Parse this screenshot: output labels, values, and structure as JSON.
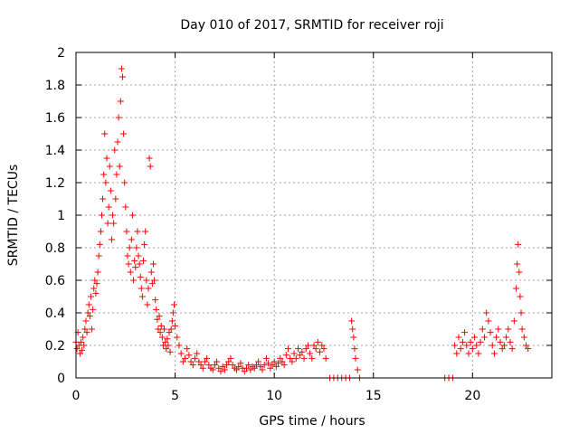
{
  "chart_data": {
    "type": "scatter",
    "title": "Day 010 of 2017, SRMTID for receiver roji",
    "xlabel": "GPS time / hours",
    "ylabel": "SRMTID / TECUs",
    "xlim": [
      0,
      24
    ],
    "ylim": [
      0,
      2
    ],
    "xticks": [
      0,
      5,
      10,
      15,
      20
    ],
    "yticks": [
      0,
      0.2,
      0.4,
      0.6,
      0.8,
      1,
      1.2,
      1.4,
      1.6,
      1.8,
      2
    ],
    "ytick_labels": [
      "0",
      "0.2",
      "0.4",
      "0.6",
      "0.8",
      "1",
      "1.2",
      "1.4",
      "1.6",
      "1.8",
      "2"
    ],
    "grid": true,
    "marker": "+",
    "color": "#ff0000",
    "series": [
      {
        "name": "SRMTID",
        "points": [
          [
            0.0,
            0.22
          ],
          [
            0.05,
            0.18
          ],
          [
            0.1,
            0.28
          ],
          [
            0.15,
            0.2
          ],
          [
            0.2,
            0.15
          ],
          [
            0.25,
            0.22
          ],
          [
            0.3,
            0.17
          ],
          [
            0.35,
            0.25
          ],
          [
            0.4,
            0.2
          ],
          [
            0.45,
            0.3
          ],
          [
            0.5,
            0.35
          ],
          [
            0.55,
            0.28
          ],
          [
            0.6,
            0.4
          ],
          [
            0.65,
            0.45
          ],
          [
            0.7,
            0.38
          ],
          [
            0.75,
            0.5
          ],
          [
            0.8,
            0.3
          ],
          [
            0.85,
            0.42
          ],
          [
            0.9,
            0.55
          ],
          [
            0.95,
            0.6
          ],
          [
            1.0,
            0.52
          ],
          [
            1.05,
            0.58
          ],
          [
            1.1,
            0.65
          ],
          [
            1.15,
            0.75
          ],
          [
            1.2,
            0.82
          ],
          [
            1.25,
            0.9
          ],
          [
            1.3,
            1.0
          ],
          [
            1.35,
            1.1
          ],
          [
            1.4,
            1.25
          ],
          [
            1.45,
            1.5
          ],
          [
            1.5,
            1.2
          ],
          [
            1.55,
            1.35
          ],
          [
            1.6,
            0.95
          ],
          [
            1.65,
            1.05
          ],
          [
            1.7,
            1.3
          ],
          [
            1.75,
            1.15
          ],
          [
            1.8,
            0.85
          ],
          [
            1.85,
            1.0
          ],
          [
            1.9,
            0.95
          ],
          [
            1.95,
            1.4
          ],
          [
            2.0,
            1.1
          ],
          [
            2.05,
            1.25
          ],
          [
            2.1,
            1.45
          ],
          [
            2.15,
            1.6
          ],
          [
            2.2,
            1.3
          ],
          [
            2.25,
            1.7
          ],
          [
            2.3,
            1.9
          ],
          [
            2.35,
            1.85
          ],
          [
            2.4,
            1.5
          ],
          [
            2.45,
            1.2
          ],
          [
            2.5,
            1.05
          ],
          [
            2.55,
            0.9
          ],
          [
            2.6,
            0.75
          ],
          [
            2.65,
            0.7
          ],
          [
            2.7,
            0.8
          ],
          [
            2.75,
            0.65
          ],
          [
            2.8,
            0.85
          ],
          [
            2.85,
            1.0
          ],
          [
            2.9,
            0.6
          ],
          [
            2.95,
            0.72
          ],
          [
            3.0,
            0.68
          ],
          [
            3.05,
            0.8
          ],
          [
            3.1,
            0.9
          ],
          [
            3.15,
            0.75
          ],
          [
            3.2,
            0.7
          ],
          [
            3.25,
            0.62
          ],
          [
            3.3,
            0.55
          ],
          [
            3.35,
            0.5
          ],
          [
            3.4,
            0.72
          ],
          [
            3.45,
            0.82
          ],
          [
            3.5,
            0.9
          ],
          [
            3.55,
            0.6
          ],
          [
            3.6,
            0.45
          ],
          [
            3.65,
            0.55
          ],
          [
            3.7,
            1.35
          ],
          [
            3.75,
            1.3
          ],
          [
            3.8,
            0.65
          ],
          [
            3.85,
            0.58
          ],
          [
            3.9,
            0.7
          ],
          [
            3.95,
            0.6
          ],
          [
            4.0,
            0.48
          ],
          [
            4.05,
            0.42
          ],
          [
            4.1,
            0.36
          ],
          [
            4.15,
            0.3
          ],
          [
            4.2,
            0.38
          ],
          [
            4.25,
            0.28
          ],
          [
            4.3,
            0.32
          ],
          [
            4.35,
            0.25
          ],
          [
            4.4,
            0.2
          ],
          [
            4.45,
            0.3
          ],
          [
            4.5,
            0.22
          ],
          [
            4.55,
            0.18
          ],
          [
            4.6,
            0.24
          ],
          [
            4.65,
            0.2
          ],
          [
            4.7,
            0.28
          ],
          [
            4.75,
            0.16
          ],
          [
            4.8,
            0.3
          ],
          [
            4.85,
            0.35
          ],
          [
            4.9,
            0.4
          ],
          [
            4.95,
            0.45
          ],
          [
            5.0,
            0.32
          ],
          [
            5.1,
            0.25
          ],
          [
            5.2,
            0.2
          ],
          [
            5.3,
            0.15
          ],
          [
            5.4,
            0.1
          ],
          [
            5.5,
            0.12
          ],
          [
            5.6,
            0.18
          ],
          [
            5.7,
            0.14
          ],
          [
            5.8,
            0.1
          ],
          [
            5.9,
            0.08
          ],
          [
            6.0,
            0.12
          ],
          [
            6.1,
            0.15
          ],
          [
            6.2,
            0.1
          ],
          [
            6.3,
            0.08
          ],
          [
            6.4,
            0.06
          ],
          [
            6.5,
            0.1
          ],
          [
            6.6,
            0.12
          ],
          [
            6.7,
            0.08
          ],
          [
            6.8,
            0.06
          ],
          [
            6.9,
            0.05
          ],
          [
            7.0,
            0.08
          ],
          [
            7.1,
            0.1
          ],
          [
            7.2,
            0.06
          ],
          [
            7.3,
            0.04
          ],
          [
            7.4,
            0.07
          ],
          [
            7.5,
            0.05
          ],
          [
            7.6,
            0.08
          ],
          [
            7.7,
            0.1
          ],
          [
            7.8,
            0.12
          ],
          [
            7.9,
            0.08
          ],
          [
            8.0,
            0.06
          ],
          [
            8.1,
            0.05
          ],
          [
            8.2,
            0.07
          ],
          [
            8.3,
            0.09
          ],
          [
            8.4,
            0.06
          ],
          [
            8.5,
            0.04
          ],
          [
            8.6,
            0.06
          ],
          [
            8.7,
            0.08
          ],
          [
            8.8,
            0.05
          ],
          [
            8.9,
            0.07
          ],
          [
            9.0,
            0.06
          ],
          [
            9.1,
            0.08
          ],
          [
            9.2,
            0.1
          ],
          [
            9.3,
            0.07
          ],
          [
            9.4,
            0.05
          ],
          [
            9.5,
            0.08
          ],
          [
            9.6,
            0.12
          ],
          [
            9.7,
            0.09
          ],
          [
            9.8,
            0.06
          ],
          [
            9.9,
            0.08
          ],
          [
            10.0,
            0.1
          ],
          [
            10.1,
            0.07
          ],
          [
            10.2,
            0.09
          ],
          [
            10.3,
            0.12
          ],
          [
            10.4,
            0.1
          ],
          [
            10.5,
            0.08
          ],
          [
            10.6,
            0.14
          ],
          [
            10.7,
            0.18
          ],
          [
            10.8,
            0.12
          ],
          [
            10.9,
            0.1
          ],
          [
            11.0,
            0.15
          ],
          [
            11.1,
            0.12
          ],
          [
            11.2,
            0.18
          ],
          [
            11.3,
            0.14
          ],
          [
            11.4,
            0.16
          ],
          [
            11.5,
            0.12
          ],
          [
            11.6,
            0.18
          ],
          [
            11.7,
            0.2
          ],
          [
            11.8,
            0.15
          ],
          [
            11.9,
            0.12
          ],
          [
            12.0,
            0.2
          ],
          [
            12.1,
            0.18
          ],
          [
            12.2,
            0.22
          ],
          [
            12.3,
            0.16
          ],
          [
            12.4,
            0.2
          ],
          [
            12.5,
            0.18
          ],
          [
            12.6,
            0.12
          ],
          [
            12.8,
            0.0
          ],
          [
            13.0,
            0.0
          ],
          [
            13.2,
            0.0
          ],
          [
            13.4,
            0.0
          ],
          [
            13.6,
            0.0
          ],
          [
            13.8,
            0.0
          ],
          [
            13.9,
            0.35
          ],
          [
            13.95,
            0.3
          ],
          [
            14.0,
            0.25
          ],
          [
            14.05,
            0.18
          ],
          [
            14.1,
            0.12
          ],
          [
            14.2,
            0.05
          ],
          [
            14.3,
            0.0
          ],
          [
            18.6,
            0.0
          ],
          [
            18.8,
            0.0
          ],
          [
            19.0,
            0.0
          ],
          [
            19.1,
            0.2
          ],
          [
            19.2,
            0.15
          ],
          [
            19.3,
            0.25
          ],
          [
            19.4,
            0.18
          ],
          [
            19.5,
            0.22
          ],
          [
            19.6,
            0.28
          ],
          [
            19.7,
            0.2
          ],
          [
            19.8,
            0.15
          ],
          [
            19.9,
            0.22
          ],
          [
            20.0,
            0.18
          ],
          [
            20.1,
            0.25
          ],
          [
            20.2,
            0.2
          ],
          [
            20.3,
            0.15
          ],
          [
            20.4,
            0.22
          ],
          [
            20.5,
            0.3
          ],
          [
            20.6,
            0.25
          ],
          [
            20.7,
            0.4
          ],
          [
            20.8,
            0.35
          ],
          [
            20.9,
            0.28
          ],
          [
            21.0,
            0.2
          ],
          [
            21.1,
            0.15
          ],
          [
            21.2,
            0.25
          ],
          [
            21.3,
            0.3
          ],
          [
            21.4,
            0.22
          ],
          [
            21.5,
            0.18
          ],
          [
            21.6,
            0.2
          ],
          [
            21.7,
            0.25
          ],
          [
            21.8,
            0.3
          ],
          [
            21.9,
            0.22
          ],
          [
            22.0,
            0.18
          ],
          [
            22.1,
            0.35
          ],
          [
            22.2,
            0.55
          ],
          [
            22.25,
            0.7
          ],
          [
            22.3,
            0.82
          ],
          [
            22.35,
            0.65
          ],
          [
            22.4,
            0.5
          ],
          [
            22.45,
            0.4
          ],
          [
            22.5,
            0.3
          ],
          [
            22.6,
            0.25
          ],
          [
            22.7,
            0.2
          ],
          [
            22.8,
            0.18
          ]
        ]
      }
    ]
  }
}
